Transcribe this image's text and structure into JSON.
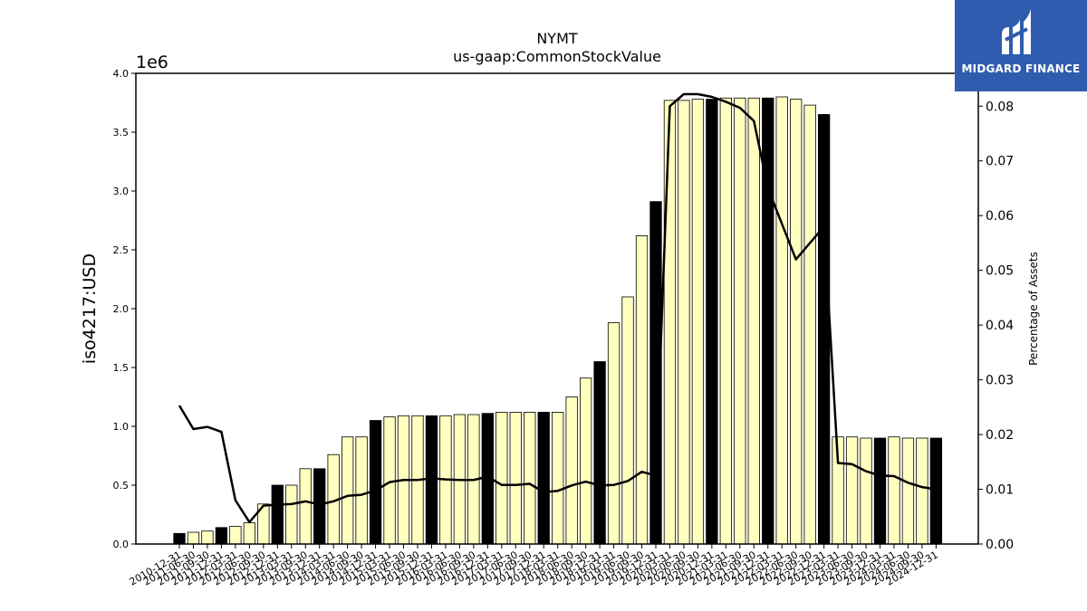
{
  "chart_data": {
    "type": "bar",
    "title": "NYMT",
    "subtitle": "us-gaap:CommonStockValue",
    "ylabel": "iso4217:USD",
    "y_multiplier": "1e6",
    "ylim": [
      0,
      4.0
    ],
    "yticks": [
      "0.0",
      "0.5",
      "1.0",
      "1.5",
      "2.0",
      "2.5",
      "3.0",
      "3.5",
      "4.0"
    ],
    "y2label": "Percentage of Assets",
    "y2lim": [
      0,
      0.086
    ],
    "y2ticks": [
      "0.00",
      "0.01",
      "0.02",
      "0.03",
      "0.04",
      "0.05",
      "0.06",
      "0.07",
      "0.08"
    ],
    "categories": [
      "2010-12-31",
      "2011-06-30",
      "2011-09-30",
      "2011-12-31",
      "2012-03-31",
      "2012-06-30",
      "2012-09-30",
      "2012-12-31",
      "2013-03-31",
      "2013-09-30",
      "2013-12-31",
      "2014-03-31",
      "2014-06-30",
      "2014-09-30",
      "2014-12-31",
      "2015-03-31",
      "2015-06-30",
      "2015-09-30",
      "2015-12-31",
      "2016-03-31",
      "2016-06-30",
      "2016-09-30",
      "2016-12-31",
      "2017-03-31",
      "2017-06-30",
      "2017-09-30",
      "2017-12-31",
      "2018-03-31",
      "2018-06-30",
      "2018-09-30",
      "2018-12-31",
      "2019-03-31",
      "2019-06-30",
      "2019-09-30",
      "2019-12-31",
      "2020-03-31",
      "2020-06-30",
      "2020-09-30",
      "2020-12-31",
      "2021-03-31",
      "2021-06-30",
      "2021-09-30",
      "2021-12-31",
      "2022-03-31",
      "2022-06-30",
      "2022-09-30",
      "2022-12-31",
      "2023-03-31",
      "2023-06-30",
      "2023-09-30",
      "2023-12-31",
      "2024-03-31",
      "2024-06-30",
      "2024-09-30",
      "2024-12-31"
    ],
    "bar_values": [
      0.09,
      0.1,
      0.11,
      0.14,
      0.15,
      0.18,
      0.34,
      0.5,
      0.5,
      0.64,
      0.64,
      0.76,
      0.91,
      0.91,
      1.05,
      1.08,
      1.09,
      1.09,
      1.09,
      1.09,
      1.1,
      1.1,
      1.11,
      1.12,
      1.12,
      1.12,
      1.12,
      1.12,
      1.25,
      1.41,
      1.55,
      1.88,
      2.1,
      2.62,
      2.91,
      3.77,
      3.77,
      3.78,
      3.78,
      3.79,
      3.79,
      3.79,
      3.79,
      3.8,
      3.78,
      3.73,
      3.65,
      0.91,
      0.91,
      0.9,
      0.9,
      0.91,
      0.9,
      0.9,
      0.9
    ],
    "bar_colors": {
      "quarter": "#ffffc0",
      "year_end": "#000000"
    },
    "line_series": {
      "name": "Percentage of Assets",
      "color": "#000000",
      "values": [
        0.0253,
        0.021,
        0.0214,
        0.0205,
        0.008,
        0.004,
        0.007,
        0.0072,
        0.0073,
        0.0078,
        0.0072,
        0.0078,
        0.0088,
        0.009,
        0.0098,
        0.0113,
        0.0117,
        0.0117,
        0.012,
        0.0118,
        0.0117,
        0.0117,
        0.0123,
        0.0108,
        0.0108,
        0.011,
        0.0095,
        0.0097,
        0.0107,
        0.0114,
        0.0107,
        0.0108,
        0.0115,
        0.0132,
        0.0125,
        0.08,
        0.0822,
        0.0822,
        0.0817,
        0.0808,
        0.0797,
        0.0773,
        0.065,
        0.0585,
        0.052,
        0.055,
        0.058,
        0.0148,
        0.0146,
        0.0133,
        0.0125,
        0.0124,
        0.0112,
        0.0104,
        0.01
      ]
    }
  },
  "branding": {
    "logo_text": "MIDGARD FINANCE",
    "colors": {
      "background": "#2f5cae",
      "text": "#ffffff"
    }
  }
}
